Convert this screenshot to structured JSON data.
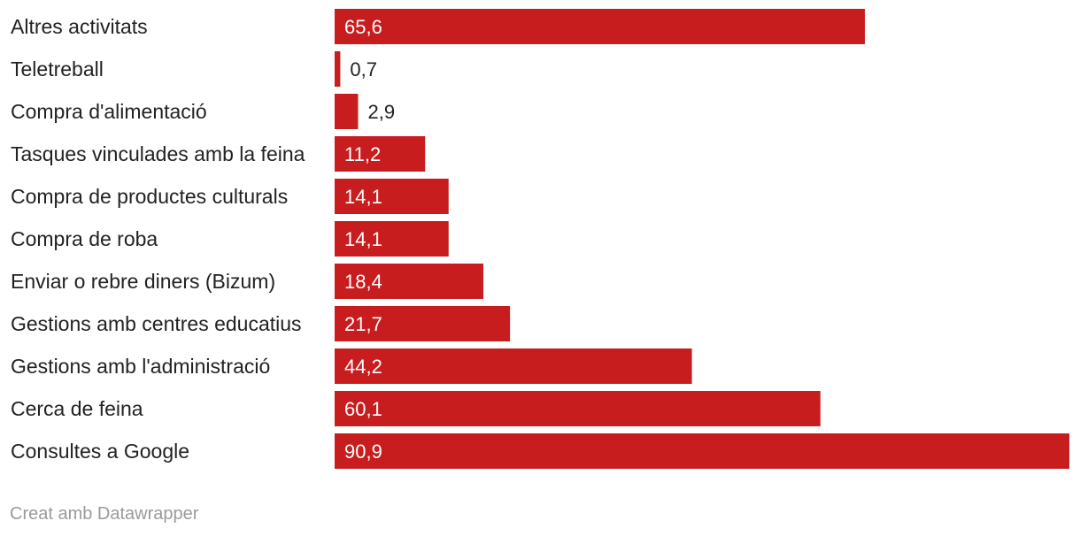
{
  "chart_data": {
    "type": "bar",
    "orientation": "horizontal",
    "categories": [
      "Altres activitats",
      "Teletreball",
      "Compra d'alimentació",
      "Tasques vinculades amb la feina",
      "Compra de productes culturals",
      "Compra de roba",
      "Enviar o rebre diners (Bizum)",
      "Gestions amb centres educatius",
      "Gestions amb l'administració",
      "Cerca de feina",
      "Consultes a Google"
    ],
    "values": [
      65.6,
      0.7,
      2.9,
      11.2,
      14.1,
      14.1,
      18.4,
      21.7,
      44.2,
      60.1,
      90.9
    ],
    "value_labels": [
      "65,6",
      "0,7",
      "2,9",
      "11,2",
      "14,1",
      "14,1",
      "18,4",
      "21,7",
      "44,2",
      "60,1",
      "90,9"
    ],
    "xlim": [
      0,
      90.9
    ],
    "grid": false,
    "legend": "none",
    "bar_color": "#c81d1e",
    "label_inside_color": "#ffffff",
    "label_outside_color": "#222222"
  },
  "footer": {
    "credit": "Creat amb Datawrapper"
  }
}
